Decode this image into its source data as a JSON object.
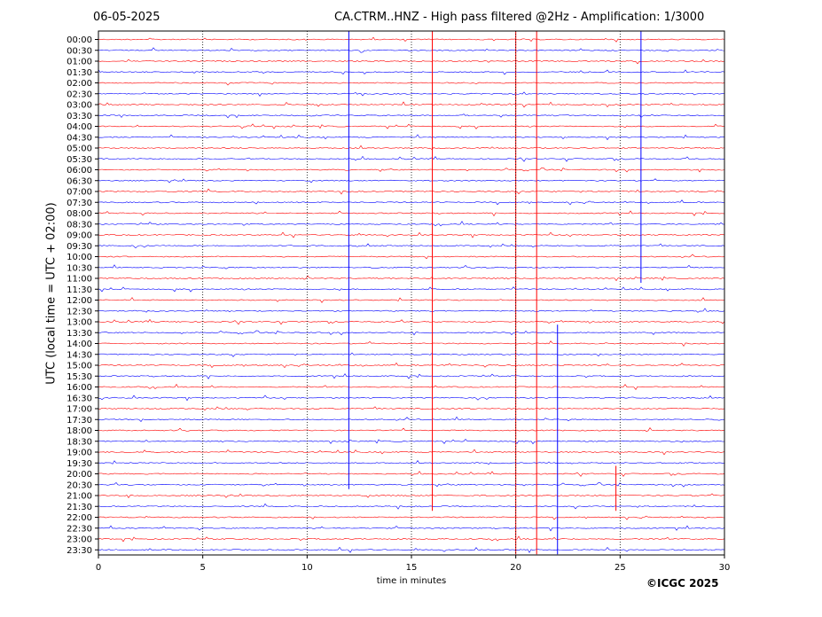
{
  "header": {
    "date": "06-05-2025",
    "title": "CA.CTRM..HNZ - High pass filtered @2Hz - Amplification: 1/3000"
  },
  "footer": {
    "copyright": "©ICGC 2025"
  },
  "colors": {
    "even_rows": "#ff0000",
    "odd_rows": "#0000ff",
    "grid": "#000000"
  },
  "chart_data": {
    "type": "line",
    "title": "CA.CTRM..HNZ - High pass filtered @2Hz - Amplification: 1/3000",
    "xlabel": "time in minutes",
    "ylabel": "UTC (local time = UTC + 02:00)",
    "xlim": [
      0,
      30
    ],
    "x_ticks": [
      0,
      5,
      10,
      15,
      20,
      25,
      30
    ],
    "vertical_gridlines": [
      5,
      10,
      15,
      20,
      25
    ],
    "grid": "vertical-dotted",
    "rows": [
      "00:00",
      "00:30",
      "01:00",
      "01:30",
      "02:00",
      "02:30",
      "03:00",
      "03:30",
      "04:00",
      "04:30",
      "05:00",
      "05:30",
      "06:00",
      "06:30",
      "07:00",
      "07:30",
      "08:00",
      "08:30",
      "09:00",
      "09:30",
      "10:00",
      "10:30",
      "11:00",
      "11:30",
      "12:00",
      "12:30",
      "13:00",
      "13:30",
      "14:00",
      "14:30",
      "15:00",
      "15:30",
      "16:00",
      "16:30",
      "17:00",
      "17:30",
      "18:00",
      "18:30",
      "19:00",
      "19:30",
      "20:00",
      "20:30",
      "21:00",
      "21:30",
      "22:00",
      "22:30",
      "23:00",
      "23:30"
    ],
    "events": [
      {
        "minute": 12.0,
        "from_row": "00:00",
        "to_row": "20:30",
        "color": "#0000ff"
      },
      {
        "minute": 16.0,
        "from_row": "00:00",
        "to_row": "21:30",
        "color": "#ff0000"
      },
      {
        "minute": 20.0,
        "from_row": "00:00",
        "to_row": "23:30",
        "color": "#ff0000"
      },
      {
        "minute": 21.0,
        "from_row": "00:00",
        "to_row": "23:30",
        "color": "#ff0000"
      },
      {
        "minute": 22.0,
        "from_row": "13:30",
        "to_row": "23:30",
        "color": "#0000ff"
      },
      {
        "minute": 26.0,
        "from_row": "00:00",
        "to_row": "11:00",
        "color": "#0000ff"
      },
      {
        "minute": 24.8,
        "from_row": "20:00",
        "to_row": "21:30",
        "color": "#ff0000"
      }
    ]
  }
}
